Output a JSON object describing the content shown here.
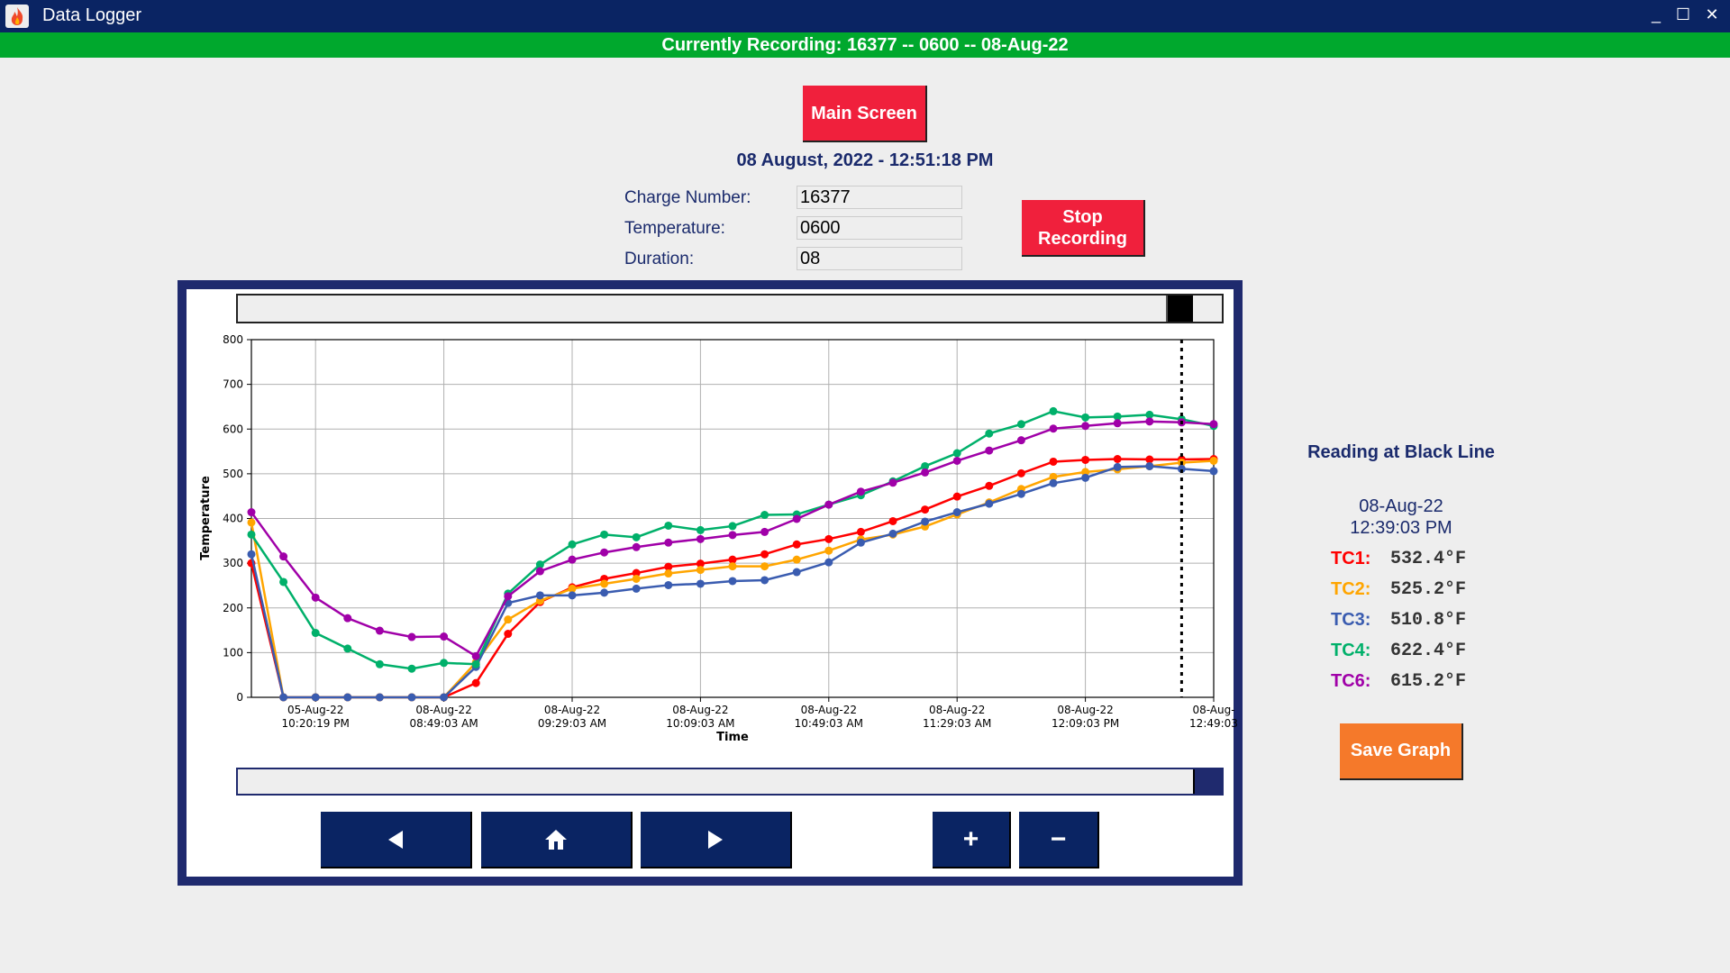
{
  "window": {
    "title": "Data Logger",
    "icon": "flame-icon"
  },
  "recording_banner": "Currently Recording: 16377 -- 0600 -- 08-Aug-22",
  "main_screen_label": "Main Screen",
  "current_datetime": "08 August, 2022 - 12:51:18 PM",
  "form": {
    "charge_label": "Charge Number:",
    "charge_value": "16377",
    "temperature_label": "Temperature:",
    "temperature_value": "0600",
    "duration_label": "Duration:",
    "duration_value": "08"
  },
  "stop_recording_label": "Stop Recording",
  "panel": {
    "title": "Reading at Black Line",
    "date": "08-Aug-22",
    "time": "12:39:03 PM",
    "readings": [
      {
        "label": "TC1:",
        "value": "532.4°F",
        "color": "#ff0000"
      },
      {
        "label": "TC2:",
        "value": "525.2°F",
        "color": "#ffa500"
      },
      {
        "label": "TC3:",
        "value": "510.8°F",
        "color": "#3a5cb0"
      },
      {
        "label": "TC4:",
        "value": "622.4°F",
        "color": "#00b06a"
      },
      {
        "label": "TC6:",
        "value": "615.2°F",
        "color": "#a000a8"
      }
    ],
    "save_label": "Save Graph"
  },
  "nav": {
    "back_icon": "triangle-left-icon",
    "home_icon": "home-icon",
    "forward_icon": "triangle-right-icon",
    "zoom_in": "+",
    "zoom_out": "−"
  },
  "scrollbars": {
    "top_position_pct": 96,
    "bottom_position_pct": 98
  },
  "chart_data": {
    "type": "line",
    "xlabel": "Time",
    "ylabel": "Temperature",
    "ylim": [
      0,
      800
    ],
    "yticks": [
      "0",
      "100",
      "200",
      "300",
      "400",
      "500",
      "600",
      "700",
      "800"
    ],
    "grid": true,
    "xtick_labels": [
      {
        "index": 2,
        "line1": "05-Aug-22",
        "line2": "10:20:19 PM"
      },
      {
        "index": 6,
        "line1": "08-Aug-22",
        "line2": "08:49:03 AM"
      },
      {
        "index": 10,
        "line1": "08-Aug-22",
        "line2": "09:29:03 AM"
      },
      {
        "index": 14,
        "line1": "08-Aug-22",
        "line2": "10:09:03 AM"
      },
      {
        "index": 18,
        "line1": "08-Aug-22",
        "line2": "10:49:03 AM"
      },
      {
        "index": 22,
        "line1": "08-Aug-22",
        "line2": "11:29:03 AM"
      },
      {
        "index": 26,
        "line1": "08-Aug-22",
        "line2": "12:09:03 PM"
      },
      {
        "index": 30,
        "line1": "08-Aug-",
        "line2": "12:49:03"
      }
    ],
    "marker_line_index": 29,
    "series": [
      {
        "color": "#ff0000",
        "values": [
          300,
          0,
          0,
          0,
          0,
          0,
          0,
          32,
          142,
          213,
          246,
          265,
          278,
          292,
          299,
          308,
          320,
          342,
          354,
          370,
          394,
          420,
          449,
          473,
          501,
          527,
          531,
          533,
          532,
          532,
          533
        ]
      },
      {
        "color": "#ffa500",
        "values": [
          391,
          0,
          0,
          0,
          0,
          0,
          0,
          78,
          174,
          216,
          243,
          254,
          265,
          277,
          285,
          293,
          293,
          308,
          328,
          353,
          364,
          382,
          409,
          436,
          466,
          493,
          504,
          510,
          517,
          525,
          529
        ]
      },
      {
        "color": "#3a5cb0",
        "values": [
          320,
          0,
          0,
          0,
          0,
          0,
          0,
          68,
          211,
          228,
          228,
          234,
          243,
          251,
          254,
          260,
          262,
          280,
          302,
          346,
          366,
          393,
          414,
          433,
          455,
          479,
          491,
          515,
          517,
          511,
          506
        ]
      },
      {
        "color": "#00b06a",
        "values": [
          364,
          258,
          144,
          109,
          74,
          64,
          77,
          74,
          232,
          297,
          342,
          364,
          358,
          384,
          374,
          383,
          408,
          409,
          431,
          452,
          483,
          517,
          546,
          590,
          611,
          640,
          626,
          628,
          632,
          622,
          607
        ]
      },
      {
        "color": "#a000a8",
        "values": [
          414,
          315,
          223,
          177,
          149,
          135,
          136,
          92,
          226,
          282,
          308,
          324,
          336,
          346,
          354,
          363,
          370,
          399,
          431,
          460,
          480,
          503,
          529,
          552,
          575,
          601,
          607,
          613,
          617,
          615,
          611
        ]
      }
    ]
  }
}
